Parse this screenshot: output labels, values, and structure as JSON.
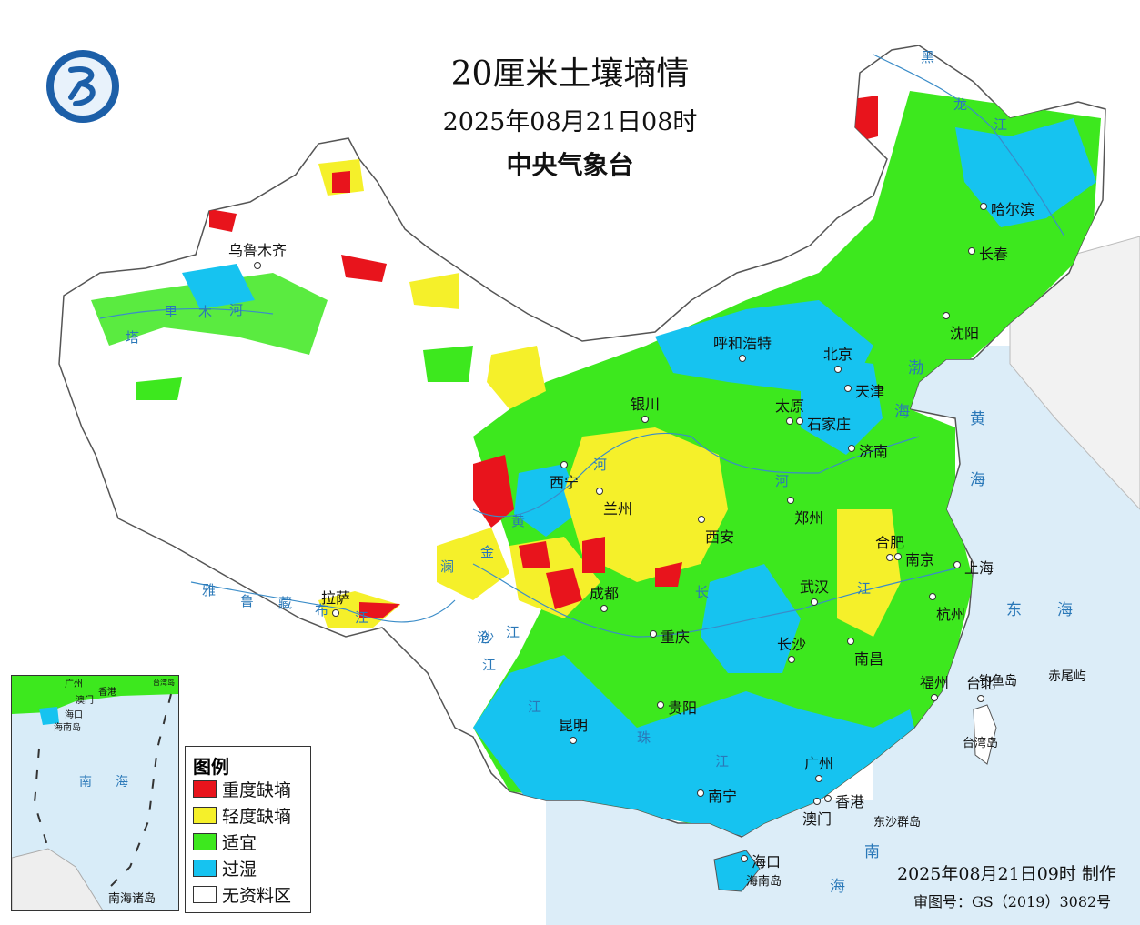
{
  "title": "20厘米土壤墒情",
  "datetime": "2025年08月21日08时",
  "issuer": "中央气象台",
  "legend": {
    "title": "图例",
    "items": [
      {
        "label": "重度缺墒",
        "color": "#e8141c"
      },
      {
        "label": "轻度缺墒",
        "color": "#f5f02a"
      },
      {
        "label": "适宜",
        "color": "#3de81e"
      },
      {
        "label": "过湿",
        "color": "#16c3f0"
      },
      {
        "label": "无资料区",
        "color": "#ffffff"
      }
    ]
  },
  "produced": "2025年08月21日09时 制作",
  "review_no": "审图号：GS（2019）3082号",
  "inset_title": "南海诸岛",
  "cities": [
    {
      "name": "乌鲁木齐"
    },
    {
      "name": "哈尔滨"
    },
    {
      "name": "长春"
    },
    {
      "name": "沈阳"
    },
    {
      "name": "呼和浩特"
    },
    {
      "name": "北京"
    },
    {
      "name": "天津"
    },
    {
      "name": "银川"
    },
    {
      "name": "太原"
    },
    {
      "name": "石家庄"
    },
    {
      "name": "济南"
    },
    {
      "name": "西宁"
    },
    {
      "name": "兰州"
    },
    {
      "name": "郑州"
    },
    {
      "name": "西安"
    },
    {
      "name": "合肥"
    },
    {
      "name": "南京"
    },
    {
      "name": "上海"
    },
    {
      "name": "拉萨"
    },
    {
      "name": "成都"
    },
    {
      "name": "武汉"
    },
    {
      "name": "杭州"
    },
    {
      "name": "重庆"
    },
    {
      "name": "长沙"
    },
    {
      "name": "南昌"
    },
    {
      "name": "贵阳"
    },
    {
      "name": "福州"
    },
    {
      "name": "台北"
    },
    {
      "name": "昆明"
    },
    {
      "name": "广州"
    },
    {
      "name": "南宁"
    },
    {
      "name": "香港"
    },
    {
      "name": "澳门"
    },
    {
      "name": "海口"
    }
  ],
  "places": [
    {
      "name": "钓鱼岛"
    },
    {
      "name": "赤尾屿"
    },
    {
      "name": "台湾岛"
    },
    {
      "name": "东沙群岛"
    },
    {
      "name": "海南岛"
    }
  ],
  "seas": [
    "渤",
    "海",
    "黄",
    "海",
    "东",
    "海",
    "南",
    "海"
  ],
  "rivers": [
    "黑",
    "龙",
    "江",
    "塔",
    "里",
    "木",
    "河",
    "雅",
    "鲁",
    "藏",
    "布",
    "江",
    "黄",
    "河",
    "河",
    "金",
    "沙",
    "江",
    "澜",
    "沧",
    "江",
    "长",
    "江",
    "江",
    "珠",
    "江"
  ],
  "inset_labels": [
    "广州",
    "香港",
    "澳门",
    "海口",
    "海南岛",
    "南",
    "海",
    "台湾岛"
  ]
}
